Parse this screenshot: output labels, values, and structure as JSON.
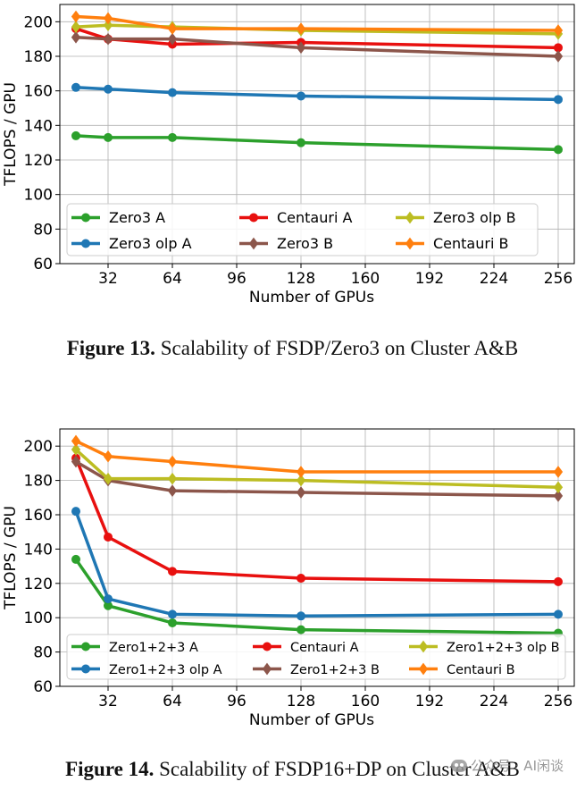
{
  "chart_data": [
    {
      "type": "line",
      "xlabel": "Number of GPUs",
      "ylabel": "TFLOPS / GPU",
      "xlim": [
        8,
        264
      ],
      "ylim": [
        60,
        210
      ],
      "xticks": [
        32,
        64,
        96,
        128,
        160,
        192,
        224,
        256
      ],
      "yticks": [
        60,
        80,
        100,
        120,
        140,
        160,
        180,
        200
      ],
      "grid": true,
      "legend_position": "lower-center",
      "series": [
        {
          "name": "Zero3 A",
          "color": "#2ca02c",
          "marker": "circle",
          "x": [
            16,
            32,
            64,
            128,
            256
          ],
          "y": [
            134,
            133,
            133,
            130,
            126
          ]
        },
        {
          "name": "Zero3 olp A",
          "color": "#1f77b4",
          "marker": "circle",
          "x": [
            16,
            32,
            64,
            128,
            256
          ],
          "y": [
            162,
            161,
            159,
            157,
            155
          ]
        },
        {
          "name": "Centauri A",
          "color": "#e8100f",
          "marker": "circle",
          "x": [
            16,
            32,
            64,
            128,
            256
          ],
          "y": [
            196,
            190,
            187,
            188,
            185
          ]
        },
        {
          "name": "Zero3 B",
          "color": "#8c564b",
          "marker": "diamond",
          "x": [
            16,
            32,
            64,
            128,
            256
          ],
          "y": [
            191,
            190,
            190,
            185,
            180
          ]
        },
        {
          "name": "Zero3 olp B",
          "color": "#bcbd22",
          "marker": "diamond",
          "x": [
            16,
            32,
            64,
            128,
            256
          ],
          "y": [
            197,
            198,
            197,
            195,
            193
          ]
        },
        {
          "name": "Centauri B",
          "color": "#ff7f0e",
          "marker": "diamond",
          "x": [
            16,
            32,
            64,
            128,
            256
          ],
          "y": [
            203,
            202,
            196,
            196,
            195
          ]
        }
      ]
    },
    {
      "type": "line",
      "xlabel": "Number of GPUs",
      "ylabel": "TFLOPS / GPU",
      "xlim": [
        8,
        264
      ],
      "ylim": [
        60,
        210
      ],
      "xticks": [
        32,
        64,
        96,
        128,
        160,
        192,
        224,
        256
      ],
      "yticks": [
        60,
        80,
        100,
        120,
        140,
        160,
        180,
        200
      ],
      "grid": true,
      "legend_position": "lower-center",
      "series": [
        {
          "name": "Zero1+2+3 A",
          "color": "#2ca02c",
          "marker": "circle",
          "x": [
            16,
            32,
            64,
            128,
            256
          ],
          "y": [
            134,
            107,
            97,
            93,
            91
          ]
        },
        {
          "name": "Zero1+2+3 olp A",
          "color": "#1f77b4",
          "marker": "circle",
          "x": [
            16,
            32,
            64,
            128,
            256
          ],
          "y": [
            162,
            111,
            102,
            101,
            102
          ]
        },
        {
          "name": "Centauri A",
          "color": "#e8100f",
          "marker": "circle",
          "x": [
            16,
            32,
            64,
            128,
            256
          ],
          "y": [
            193,
            147,
            127,
            123,
            121
          ]
        },
        {
          "name": "Zero1+2+3 B",
          "color": "#8c564b",
          "marker": "diamond",
          "x": [
            16,
            32,
            64,
            128,
            256
          ],
          "y": [
            191,
            180,
            174,
            173,
            171
          ]
        },
        {
          "name": "Zero1+2+3 olp B",
          "color": "#bcbd22",
          "marker": "diamond",
          "x": [
            16,
            32,
            64,
            128,
            256
          ],
          "y": [
            198,
            181,
            181,
            180,
            176
          ]
        },
        {
          "name": "Centauri B",
          "color": "#ff7f0e",
          "marker": "diamond",
          "x": [
            16,
            32,
            64,
            128,
            256
          ],
          "y": [
            203,
            194,
            191,
            185,
            185
          ]
        }
      ]
    }
  ],
  "captions": [
    {
      "label": "Figure 13.",
      "text": " Scalability of FSDP/Zero3 on Cluster A&B"
    },
    {
      "label": "Figure 14.",
      "text": " Scalability of FSDP16+DP on Cluster A&B"
    }
  ],
  "watermark": {
    "text": "公众号 · AI闲谈",
    "icon": "wechat-icon"
  }
}
